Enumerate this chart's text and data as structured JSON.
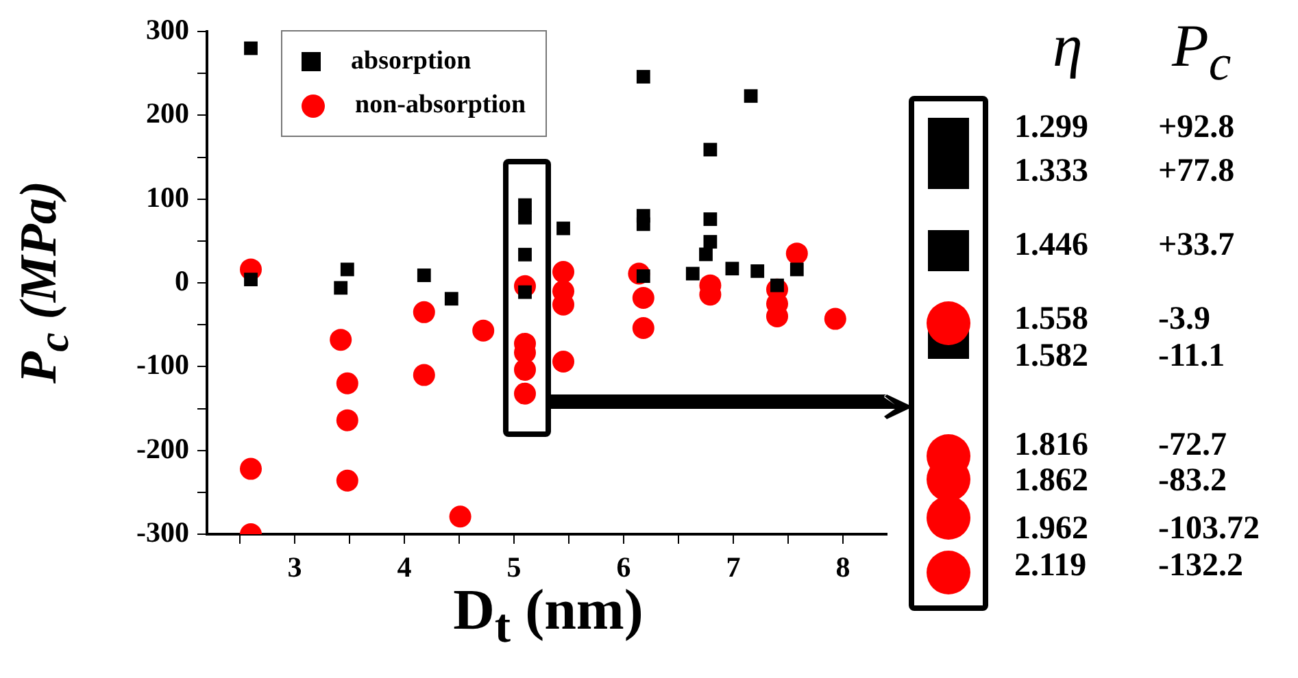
{
  "chart_data": {
    "type": "scatter",
    "xlabel": "D$_{t}$ (nm)",
    "ylabel": "P$_{c}$ (MPa)",
    "xlim": [
      2.2,
      8.4
    ],
    "xticks": [
      {
        "value": 2.5,
        "label": null
      },
      3,
      {
        "value": 3.5,
        "label": null
      },
      4,
      {
        "value": 4.5,
        "label": null
      },
      5,
      {
        "value": 5.5,
        "label": null
      },
      6,
      {
        "value": 6.5,
        "label": null
      },
      7,
      {
        "value": 7.5,
        "label": null
      },
      8
    ],
    "ylim": [
      -300,
      300
    ],
    "yticks": [
      -300,
      {
        "value": -250,
        "label": null
      },
      -200,
      {
        "value": -150,
        "label": null
      },
      -100,
      {
        "value": -50,
        "label": null
      },
      0,
      {
        "value": 50,
        "label": null
      },
      100,
      {
        "value": 150,
        "label": null
      },
      200,
      {
        "value": 250,
        "label": null
      },
      300
    ],
    "grid": false,
    "legend": "top left",
    "series": [
      {
        "name": "absorption",
        "color": "#000000",
        "marker": "square",
        "x": [
          2.6,
          2.6,
          3.42,
          3.48,
          4.18,
          4.43,
          5.1,
          5.1,
          5.1,
          5.1,
          5.45,
          6.18,
          6.18,
          6.18,
          6.18,
          6.63,
          6.75,
          6.79,
          6.79,
          6.79,
          6.99,
          7.16,
          7.22,
          7.4,
          7.58
        ],
        "values": [
          280,
          4,
          -6,
          16,
          9,
          -19,
          92.8,
          77.8,
          33.7,
          -11.1,
          65,
          246,
          80,
          70,
          8,
          11,
          34,
          49,
          76,
          159,
          17,
          223,
          14,
          -3,
          16
        ]
      },
      {
        "name": "non-absorption",
        "color": "#ff0000",
        "marker": "circle",
        "x": [
          2.6,
          2.6,
          2.6,
          3.42,
          3.48,
          3.48,
          3.48,
          4.18,
          4.18,
          4.51,
          4.72,
          5.1,
          5.1,
          5.1,
          5.1,
          5.1,
          5.45,
          5.45,
          5.45,
          5.45,
          6.14,
          6.18,
          6.18,
          6.79,
          6.79,
          7.4,
          7.4,
          7.4,
          7.58,
          7.93
        ],
        "values": [
          16,
          -222,
          -300,
          -68,
          -120,
          -164,
          -236,
          -35,
          -110,
          -279,
          -57,
          -3.9,
          -72.7,
          -83.2,
          -103.72,
          -132.2,
          13,
          -10,
          -26,
          -94,
          11,
          -18,
          -54,
          -3,
          -14,
          -8,
          -25,
          -40,
          35,
          -43
        ]
      }
    ],
    "annotations": [
      "η",
      "P$_{c}$",
      "1.299",
      "+92.8",
      "1.333",
      "+77.8",
      "1.446",
      "+33.7",
      "1.558",
      "-3.9",
      "1.582",
      "-11.1",
      "1.816",
      "-72.7",
      "1.862",
      "-83.2",
      "1.962",
      "-103.72",
      "2.119",
      "-132.2"
    ]
  }
}
